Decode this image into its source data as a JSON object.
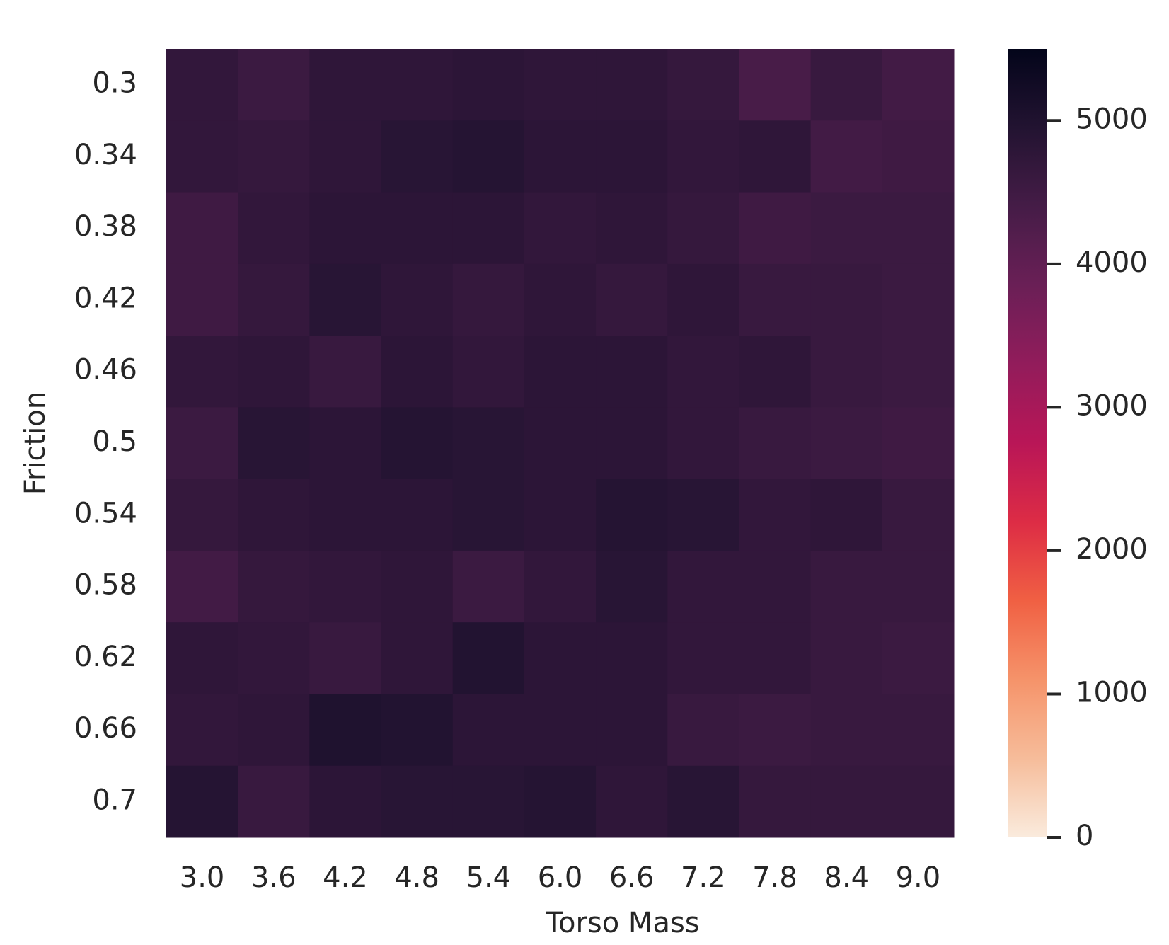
{
  "chart_data": {
    "type": "heatmap",
    "x_label": "Torso Mass",
    "y_label": "Friction",
    "x_categories": [
      "3.0",
      "3.6",
      "4.2",
      "4.8",
      "5.4",
      "6.0",
      "6.6",
      "7.2",
      "7.8",
      "8.4",
      "9.0"
    ],
    "y_categories": [
      "0.3",
      "0.34",
      "0.38",
      "0.42",
      "0.46",
      "0.5",
      "0.54",
      "0.58",
      "0.62",
      "0.66",
      "0.7"
    ],
    "values": [
      [
        4700,
        4550,
        4750,
        4750,
        4800,
        4750,
        4750,
        4650,
        4350,
        4600,
        4450
      ],
      [
        4700,
        4650,
        4750,
        4850,
        4900,
        4800,
        4800,
        4700,
        4750,
        4450,
        4500
      ],
      [
        4500,
        4700,
        4800,
        4800,
        4800,
        4700,
        4750,
        4650,
        4500,
        4550,
        4550
      ],
      [
        4500,
        4650,
        4850,
        4750,
        4650,
        4750,
        4650,
        4750,
        4600,
        4600,
        4550
      ],
      [
        4700,
        4750,
        4600,
        4800,
        4700,
        4800,
        4800,
        4700,
        4750,
        4600,
        4550
      ],
      [
        4550,
        4850,
        4800,
        4900,
        4850,
        4800,
        4800,
        4700,
        4600,
        4550,
        4500
      ],
      [
        4650,
        4750,
        4800,
        4800,
        4850,
        4800,
        4900,
        4850,
        4700,
        4750,
        4600
      ],
      [
        4450,
        4650,
        4700,
        4750,
        4550,
        4700,
        4850,
        4700,
        4700,
        4600,
        4600
      ],
      [
        4750,
        4700,
        4600,
        4750,
        4950,
        4800,
        4800,
        4700,
        4700,
        4600,
        4550
      ],
      [
        4700,
        4750,
        5000,
        4950,
        4800,
        4800,
        4800,
        4600,
        4550,
        4600,
        4600
      ],
      [
        4900,
        4600,
        4800,
        4850,
        4850,
        4900,
        4750,
        4850,
        4650,
        4650,
        4650
      ]
    ],
    "colormap": "rocket_r",
    "clim": [
      0,
      5500
    ],
    "cticks": [
      0,
      1000,
      2000,
      3000,
      4000,
      5000
    ]
  }
}
